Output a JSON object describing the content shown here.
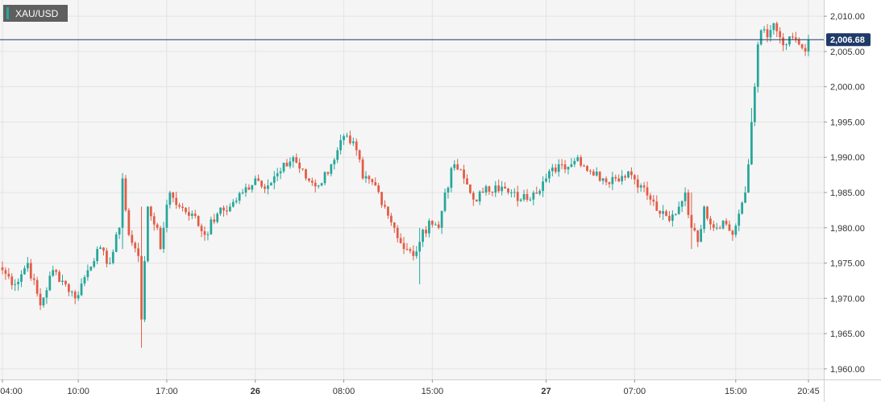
{
  "header": {
    "symbol": "XAU/USD"
  },
  "colors": {
    "up": "#26a69a",
    "down": "#e25c46",
    "last_price_line": "#1f3a68",
    "grid": "#e3e3e3",
    "plot_bg": "#f5f5f5",
    "axis_text": "#333333"
  },
  "chart_data": {
    "type": "candlestick",
    "title": "XAU/USD",
    "last_price": 2006.68,
    "last_price_label": "2,006.68",
    "ylim": [
      1958.5,
      2012.3
    ],
    "grid": true,
    "y_ticks": [
      {
        "value": 2010,
        "label": "2,010.00"
      },
      {
        "value": 2005,
        "label": "2,005.00"
      },
      {
        "value": 2000,
        "label": "2,000.00"
      },
      {
        "value": 1995,
        "label": "1,995.00"
      },
      {
        "value": 1990,
        "label": "1,990.00"
      },
      {
        "value": 1985,
        "label": "1,985.00"
      },
      {
        "value": 1980,
        "label": "1,980.00"
      },
      {
        "value": 1975,
        "label": "1,975.00"
      },
      {
        "value": 1970,
        "label": "1,970.00"
      },
      {
        "value": 1965,
        "label": "1,965.00"
      },
      {
        "value": 1960,
        "label": "1,960.00"
      }
    ],
    "x_ticks": [
      {
        "index": 0,
        "label": "04:00",
        "bold": false
      },
      {
        "index": 24,
        "label": "10:00",
        "bold": false
      },
      {
        "index": 52,
        "label": "17:00",
        "bold": false
      },
      {
        "index": 80,
        "label": "26",
        "bold": true
      },
      {
        "index": 108,
        "label": "08:00",
        "bold": false
      },
      {
        "index": 136,
        "label": "15:00",
        "bold": false
      },
      {
        "index": 172,
        "label": "27",
        "bold": true
      },
      {
        "index": 200,
        "label": "07:00",
        "bold": false
      },
      {
        "index": 232,
        "label": "15:00",
        "bold": false
      },
      {
        "index": 255,
        "label": "20:45",
        "bold": false
      }
    ],
    "anchors": [
      [
        0,
        1974
      ],
      [
        4,
        1972
      ],
      [
        8,
        1975
      ],
      [
        12,
        1969
      ],
      [
        16,
        1974
      ],
      [
        20,
        1972
      ],
      [
        23,
        1970
      ],
      [
        26,
        1973
      ],
      [
        30,
        1977
      ],
      [
        34,
        1975
      ],
      [
        37,
        1980
      ],
      [
        38,
        1987
      ],
      [
        40,
        1979
      ],
      [
        43,
        1976
      ],
      [
        44,
        1967
      ],
      [
        46,
        1983
      ],
      [
        49,
        1980
      ],
      [
        50,
        1977
      ],
      [
        51,
        1980
      ],
      [
        53,
        1985
      ],
      [
        56,
        1983
      ],
      [
        60,
        1982
      ],
      [
        64,
        1979
      ],
      [
        68,
        1982
      ],
      [
        72,
        1983
      ],
      [
        76,
        1985
      ],
      [
        80,
        1987
      ],
      [
        84,
        1986
      ],
      [
        88,
        1988
      ],
      [
        92,
        1990
      ],
      [
        96,
        1987
      ],
      [
        100,
        1986
      ],
      [
        104,
        1989
      ],
      [
        106,
        1991
      ],
      [
        108,
        1993
      ],
      [
        110,
        1992
      ],
      [
        112,
        1991
      ],
      [
        114,
        1987
      ],
      [
        118,
        1986
      ],
      [
        121,
        1983
      ],
      [
        124,
        1980
      ],
      [
        127,
        1977
      ],
      [
        130,
        1976
      ],
      [
        132,
        1978
      ],
      [
        135,
        1981
      ],
      [
        138,
        1980
      ],
      [
        140,
        1985
      ],
      [
        143,
        1989
      ],
      [
        146,
        1987
      ],
      [
        149,
        1984
      ],
      [
        152,
        1985
      ],
      [
        156,
        1986
      ],
      [
        160,
        1985
      ],
      [
        164,
        1984
      ],
      [
        168,
        1985
      ],
      [
        172,
        1987
      ],
      [
        176,
        1989
      ],
      [
        180,
        1989
      ],
      [
        182,
        1990
      ],
      [
        186,
        1988
      ],
      [
        190,
        1987
      ],
      [
        194,
        1987
      ],
      [
        198,
        1988
      ],
      [
        202,
        1986
      ],
      [
        205,
        1984
      ],
      [
        208,
        1982
      ],
      [
        211,
        1981
      ],
      [
        214,
        1983
      ],
      [
        216,
        1985
      ],
      [
        218,
        1980
      ],
      [
        220,
        1978
      ],
      [
        222,
        1983
      ],
      [
        225,
        1980
      ],
      [
        228,
        1981
      ],
      [
        231,
        1979
      ],
      [
        233,
        1982
      ],
      [
        235,
        1985
      ],
      [
        236,
        1989
      ],
      [
        237,
        1995
      ],
      [
        238,
        2000
      ],
      [
        239,
        2006
      ],
      [
        240,
        2008
      ],
      [
        242,
        2007
      ],
      [
        244,
        2009
      ],
      [
        246,
        2007
      ],
      [
        248,
        2006
      ],
      [
        250,
        2007
      ],
      [
        252,
        2006
      ],
      [
        254,
        2005
      ],
      [
        255,
        2006.68
      ]
    ],
    "spikes": [
      [
        38,
        1987.5,
        1977
      ],
      [
        44,
        1983,
        1963
      ],
      [
        132,
        1980,
        1972
      ],
      [
        218,
        1985,
        1977
      ],
      [
        237,
        1997,
        1993
      ]
    ]
  }
}
